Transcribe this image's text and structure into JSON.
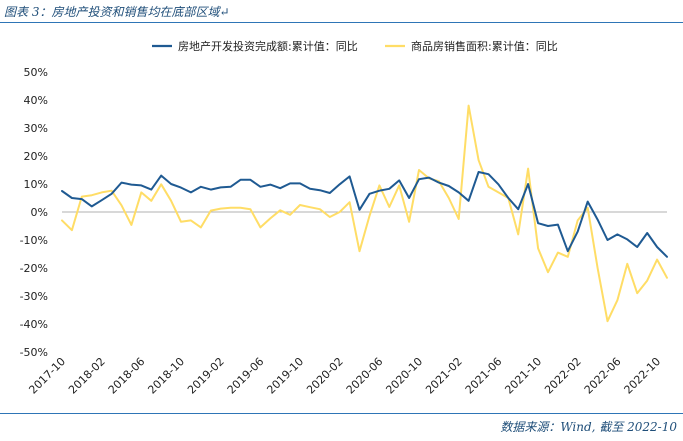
{
  "page": {
    "title": "图表 3：房地产投资和销售均在底部区域↵",
    "source": "数据来源：Wind, 截至 2022-10"
  },
  "colors": {
    "series1": "#1f5a92",
    "series2": "#ffdd66",
    "accent": "#2e75b6"
  },
  "chart_data": {
    "type": "line",
    "title": "图表 3：房地产投资和销售均在底部区域",
    "xlabel": "",
    "ylabel": "",
    "ylim": [
      -50,
      50
    ],
    "yticks": [
      "50%",
      "40%",
      "30%",
      "20%",
      "10%",
      "0%",
      "-10%",
      "-20%",
      "-30%",
      "-40%",
      "-50%"
    ],
    "ytick_values": [
      50,
      40,
      30,
      20,
      10,
      0,
      -10,
      -20,
      -30,
      -40,
      -50
    ],
    "xtick_labels": [
      "2017-10",
      "2018-02",
      "2018-06",
      "2018-10",
      "2019-02",
      "2019-06",
      "2019-10",
      "2020-02",
      "2020-06",
      "2020-10",
      "2021-02",
      "2021-06",
      "2021-10",
      "2022-02",
      "2022-06",
      "2022-10"
    ],
    "xtick_index": [
      0,
      4,
      8,
      12,
      16,
      20,
      24,
      28,
      32,
      36,
      40,
      44,
      48,
      52,
      56,
      60
    ],
    "legend_position": "top",
    "grid": false,
    "series": [
      {
        "name": "房地产开发投资完成额:累计值：同比",
        "color": "#1f5a92",
        "values": [
          7.5,
          5.0,
          4.6,
          2.0,
          4.2,
          6.5,
          10.5,
          9.8,
          9.5,
          8.0,
          13.0,
          10.0,
          8.7,
          7.0,
          9.0,
          8.0,
          8.8,
          9.0,
          11.5,
          11.5,
          9.0,
          9.8,
          8.5,
          10.2,
          10.2,
          8.3,
          7.8,
          6.8,
          9.9,
          12.7,
          0.8,
          6.5,
          7.6,
          8.3,
          11.3,
          5.0,
          11.7,
          12.3,
          10.5,
          9.3,
          7.0,
          4.0,
          14.3,
          13.5,
          9.9,
          5.0,
          1.0,
          10.0,
          -4.0,
          -5.0,
          -4.5,
          -14.0,
          -7.0,
          3.7,
          -2.7,
          -10.0,
          -8.0,
          -9.8,
          -12.5,
          -7.5,
          -12.5,
          -16.0
        ]
      },
      {
        "name": "商品房销售面积:累计值：同比",
        "color": "#ffdd66",
        "values": [
          -3.0,
          -6.5,
          5.5,
          6.0,
          7.0,
          7.6,
          2.4,
          -4.6,
          7.0,
          4.0,
          9.9,
          4.0,
          -3.5,
          -3.0,
          -5.5,
          0.5,
          1.2,
          1.5,
          1.5,
          1.0,
          -5.5,
          -2.3,
          0.6,
          -1.0,
          2.5,
          1.7,
          1.0,
          -1.8,
          0.0,
          3.5,
          -14.0,
          -1.4,
          9.5,
          1.8,
          9.5,
          -3.5,
          15.0,
          12.0,
          11.0,
          5.0,
          -2.5,
          38.0,
          18.5,
          9.0,
          7.0,
          5.0,
          -8.0,
          15.5,
          -13.0,
          -21.5,
          -14.5,
          -16.0,
          -3.0,
          1.5,
          -20.0,
          -39.0,
          -31.5,
          -18.5,
          -29.0,
          -24.5,
          -17.0,
          -23.5
        ]
      }
    ]
  }
}
